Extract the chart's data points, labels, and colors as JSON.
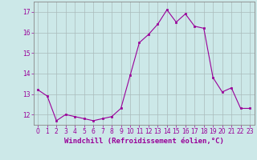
{
  "x": [
    0,
    1,
    2,
    3,
    4,
    5,
    6,
    7,
    8,
    9,
    10,
    11,
    12,
    13,
    14,
    15,
    16,
    17,
    18,
    19,
    20,
    21,
    22,
    23
  ],
  "y": [
    13.2,
    12.9,
    11.7,
    12.0,
    11.9,
    11.8,
    11.7,
    11.8,
    11.9,
    12.3,
    13.9,
    15.5,
    15.9,
    16.4,
    17.1,
    16.5,
    16.9,
    16.3,
    16.2,
    13.8,
    13.1,
    13.3,
    12.3,
    12.3
  ],
  "line_color": "#990099",
  "marker": "s",
  "marker_size": 2,
  "bg_color": "#cce8e8",
  "grid_color": "#aabbbb",
  "xlabel": "Windchill (Refroidissement éolien,°C)",
  "xlabel_fontsize": 6.5,
  "ylim": [
    11.5,
    17.5
  ],
  "yticks": [
    12,
    13,
    14,
    15,
    16,
    17
  ],
  "xticks": [
    0,
    1,
    2,
    3,
    4,
    5,
    6,
    7,
    8,
    9,
    10,
    11,
    12,
    13,
    14,
    15,
    16,
    17,
    18,
    19,
    20,
    21,
    22,
    23
  ],
  "tick_fontsize": 5.5,
  "tick_color": "#990099",
  "spine_color": "#888888"
}
